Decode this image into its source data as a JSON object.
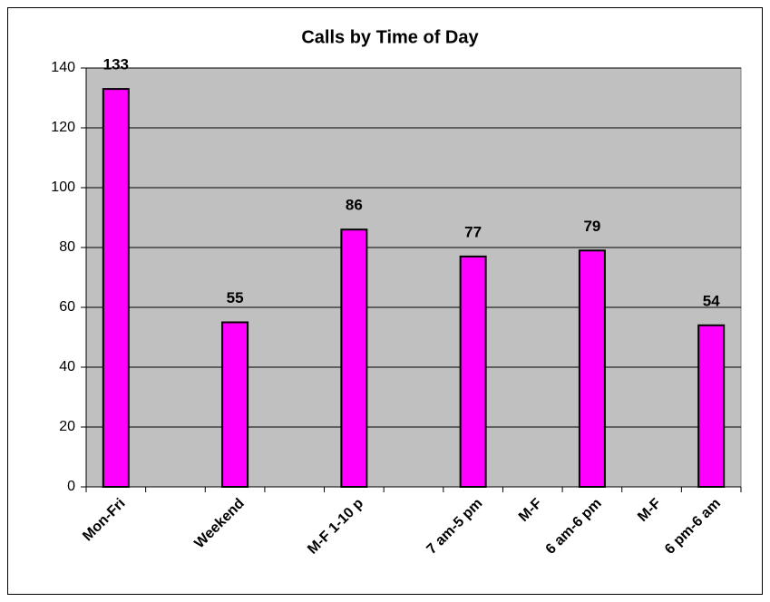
{
  "chart_data": {
    "type": "bar",
    "title": "Calls by Time of Day",
    "categories": [
      "Mon-Fri",
      null,
      "Weekend",
      null,
      "M-F 1-10 p",
      null,
      "7 am-5 pm",
      "M-F",
      "6 am-6 pm",
      "M-F",
      "6 pm-6 am"
    ],
    "values": [
      133,
      null,
      55,
      null,
      86,
      null,
      77,
      null,
      79,
      null,
      54
    ],
    "color": "#ff00ff",
    "ylim": [
      0,
      140
    ],
    "yticks": [
      0,
      20,
      40,
      60,
      80,
      100,
      120,
      140
    ],
    "grid": true
  }
}
